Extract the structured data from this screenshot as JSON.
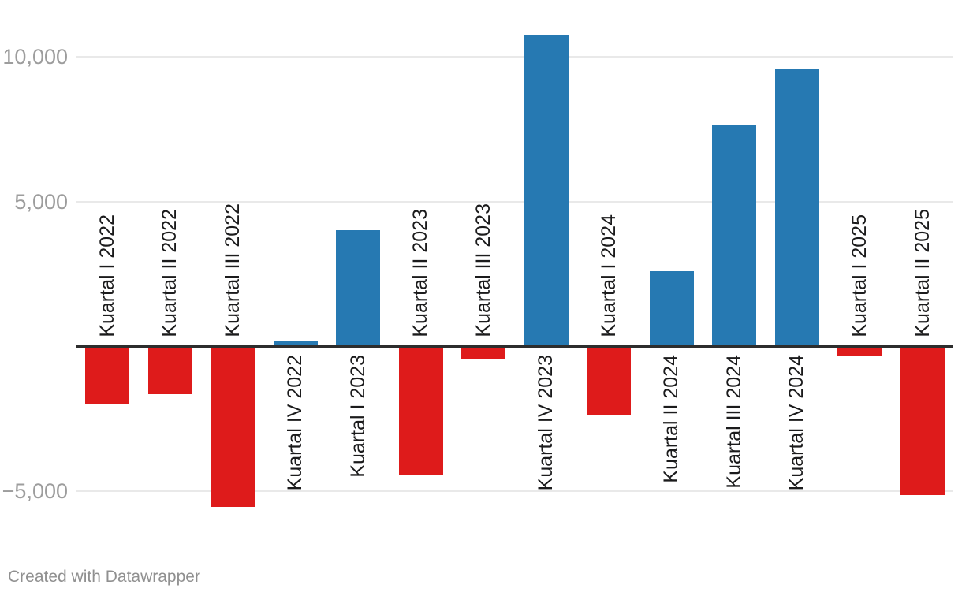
{
  "chart_data": {
    "type": "bar",
    "categories": [
      "Kuartal I 2022",
      "Kuartal II 2022",
      "Kuartal III 2022",
      "Kuartal IV 2022",
      "Kuartal I 2023",
      "Kuartal II 2023",
      "Kuartal III 2023",
      "Kuartal IV 2023",
      "Kuartal I 2024",
      "Kuartal II 2024",
      "Kuartal III 2024",
      "Kuartal IV 2024",
      "Kuartal I 2025",
      "Kuartal II 2025"
    ],
    "values": [
      -2000,
      -1660,
      -5560,
      200,
      4000,
      -4430,
      -460,
      10750,
      -2370,
      2590,
      7650,
      9600,
      -350,
      -5140
    ],
    "title": "",
    "xlabel": "",
    "ylabel": "",
    "ylim": [
      -5700,
      10800
    ],
    "grid": true,
    "legend": false,
    "y_ticks": [
      {
        "value": 10000,
        "label": "10,000"
      },
      {
        "value": 5000,
        "label": "5,000"
      },
      {
        "value": -5000,
        "label": "−5,000"
      }
    ],
    "colors": {
      "positive": "#2679b2",
      "negative": "#de1b1b",
      "axis_line": "#2d2d2d",
      "gridline": "#e9e9e9",
      "tick_text": "#9d9d9d",
      "category_text": "#1b1b1c"
    }
  },
  "footer": {
    "credit": "Created with Datawrapper"
  }
}
